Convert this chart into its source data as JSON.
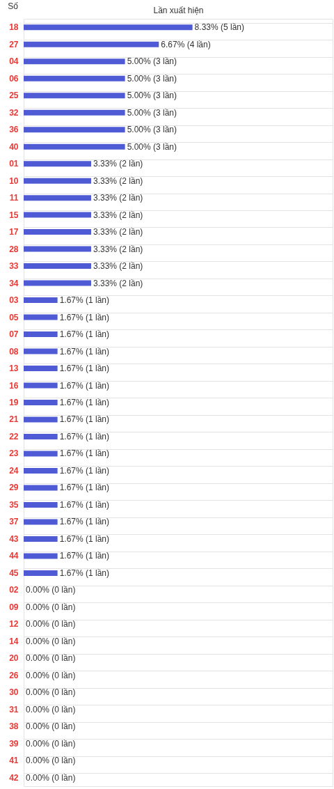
{
  "chart_data": {
    "type": "bar",
    "orientation": "horizontal",
    "xlabel": "Lần xuất hiện",
    "ylabel": "Số",
    "tick_labels": "y",
    "grid": "y",
    "categories": [
      "18",
      "27",
      "04",
      "06",
      "25",
      "32",
      "36",
      "40",
      "01",
      "10",
      "11",
      "15",
      "17",
      "28",
      "33",
      "34",
      "03",
      "05",
      "07",
      "08",
      "13",
      "16",
      "19",
      "21",
      "22",
      "23",
      "24",
      "29",
      "35",
      "37",
      "43",
      "44",
      "45",
      "02",
      "09",
      "12",
      "14",
      "20",
      "26",
      "30",
      "31",
      "38",
      "39",
      "41",
      "42"
    ],
    "values": [
      8.33,
      6.67,
      5.0,
      5.0,
      5.0,
      5.0,
      5.0,
      5.0,
      3.33,
      3.33,
      3.33,
      3.33,
      3.33,
      3.33,
      3.33,
      3.33,
      1.67,
      1.67,
      1.67,
      1.67,
      1.67,
      1.67,
      1.67,
      1.67,
      1.67,
      1.67,
      1.67,
      1.67,
      1.67,
      1.67,
      1.67,
      1.67,
      1.67,
      0,
      0,
      0,
      0,
      0,
      0,
      0,
      0,
      0,
      0,
      0,
      0
    ],
    "value_labels": [
      "8.33% (5 lần)",
      "6.67% (4 lần)",
      "5.00% (3 lần)",
      "5.00% (3 lần)",
      "5.00% (3 lần)",
      "5.00% (3 lần)",
      "5.00% (3 lần)",
      "5.00% (3 lần)",
      "3.33% (2 lần)",
      "3.33% (2 lần)",
      "3.33% (2 lần)",
      "3.33% (2 lần)",
      "3.33% (2 lần)",
      "3.33% (2 lần)",
      "3.33% (2 lần)",
      "3.33% (2 lần)",
      "1.67% (1 lần)",
      "1.67% (1 lần)",
      "1.67% (1 lần)",
      "1.67% (1 lần)",
      "1.67% (1 lần)",
      "1.67% (1 lần)",
      "1.67% (1 lần)",
      "1.67% (1 lần)",
      "1.67% (1 lần)",
      "1.67% (1 lần)",
      "1.67% (1 lần)",
      "1.67% (1 lần)",
      "1.67% (1 lần)",
      "1.67% (1 lần)",
      "1.67% (1 lần)",
      "1.67% (1 lần)",
      "1.67% (1 lần)",
      "0.00% (0 lần)",
      "0.00% (0 lần)",
      "0.00% (0 lần)",
      "0.00% (0 lần)",
      "0.00% (0 lần)",
      "0.00% (0 lần)",
      "0.00% (0 lần)",
      "0.00% (0 lần)",
      "0.00% (0 lần)",
      "0.00% (0 lần)",
      "0.00% (0 lần)",
      "0.00% (0 lần)"
    ],
    "color": "#4f5bd5"
  }
}
